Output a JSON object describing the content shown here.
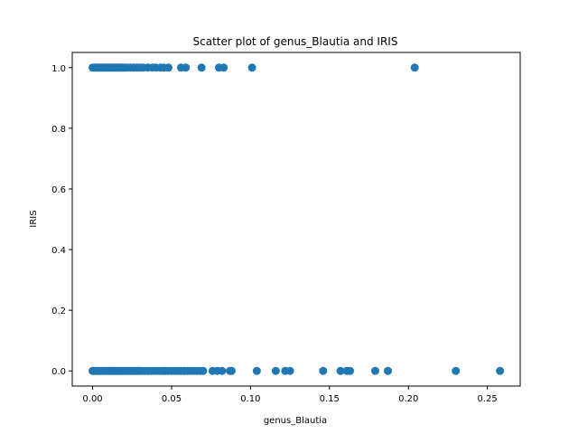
{
  "chart_data": {
    "type": "scatter",
    "title": "Scatter plot of genus_Blautia and IRIS",
    "xlabel": "genus_Blautia",
    "ylabel": "IRIS",
    "xlim": [
      -0.0129,
      0.2708
    ],
    "ylim": [
      -0.05,
      1.05
    ],
    "xticks": [
      0.0,
      0.05,
      0.1,
      0.15,
      0.2,
      0.25
    ],
    "xtick_labels": [
      "0.00",
      "0.05",
      "0.10",
      "0.15",
      "0.20",
      "0.25"
    ],
    "yticks": [
      0.0,
      0.2,
      0.4,
      0.6,
      0.8,
      1.0
    ],
    "ytick_labels": [
      "0.0",
      "0.2",
      "0.4",
      "0.6",
      "0.8",
      "1.0"
    ],
    "grid": false,
    "marker_color": "#1f77b4",
    "series": [
      {
        "name": "",
        "points": [
          {
            "x": 0.0,
            "y": 1
          },
          {
            "x": 0.001,
            "y": 1
          },
          {
            "x": 0.002,
            "y": 1
          },
          {
            "x": 0.003,
            "y": 1
          },
          {
            "x": 0.004,
            "y": 1
          },
          {
            "x": 0.005,
            "y": 1
          },
          {
            "x": 0.006,
            "y": 1
          },
          {
            "x": 0.007,
            "y": 1
          },
          {
            "x": 0.008,
            "y": 1
          },
          {
            "x": 0.009,
            "y": 1
          },
          {
            "x": 0.01,
            "y": 1
          },
          {
            "x": 0.011,
            "y": 1
          },
          {
            "x": 0.012,
            "y": 1
          },
          {
            "x": 0.013,
            "y": 1
          },
          {
            "x": 0.014,
            "y": 1
          },
          {
            "x": 0.015,
            "y": 1
          },
          {
            "x": 0.016,
            "y": 1
          },
          {
            "x": 0.017,
            "y": 1
          },
          {
            "x": 0.018,
            "y": 1
          },
          {
            "x": 0.019,
            "y": 1
          },
          {
            "x": 0.02,
            "y": 1
          },
          {
            "x": 0.022,
            "y": 1
          },
          {
            "x": 0.024,
            "y": 1
          },
          {
            "x": 0.026,
            "y": 1
          },
          {
            "x": 0.028,
            "y": 1
          },
          {
            "x": 0.03,
            "y": 1
          },
          {
            "x": 0.032,
            "y": 1
          },
          {
            "x": 0.035,
            "y": 1
          },
          {
            "x": 0.038,
            "y": 1
          },
          {
            "x": 0.04,
            "y": 1
          },
          {
            "x": 0.043,
            "y": 1
          },
          {
            "x": 0.045,
            "y": 1
          },
          {
            "x": 0.048,
            "y": 1
          },
          {
            "x": 0.056,
            "y": 1
          },
          {
            "x": 0.059,
            "y": 1
          },
          {
            "x": 0.069,
            "y": 1
          },
          {
            "x": 0.08,
            "y": 1
          },
          {
            "x": 0.083,
            "y": 1
          },
          {
            "x": 0.101,
            "y": 1
          },
          {
            "x": 0.204,
            "y": 1
          },
          {
            "x": 0.0,
            "y": 0
          },
          {
            "x": 0.001,
            "y": 0
          },
          {
            "x": 0.002,
            "y": 0
          },
          {
            "x": 0.003,
            "y": 0
          },
          {
            "x": 0.004,
            "y": 0
          },
          {
            "x": 0.005,
            "y": 0
          },
          {
            "x": 0.006,
            "y": 0
          },
          {
            "x": 0.007,
            "y": 0
          },
          {
            "x": 0.008,
            "y": 0
          },
          {
            "x": 0.009,
            "y": 0
          },
          {
            "x": 0.01,
            "y": 0
          },
          {
            "x": 0.011,
            "y": 0
          },
          {
            "x": 0.012,
            "y": 0
          },
          {
            "x": 0.013,
            "y": 0
          },
          {
            "x": 0.014,
            "y": 0
          },
          {
            "x": 0.015,
            "y": 0
          },
          {
            "x": 0.016,
            "y": 0
          },
          {
            "x": 0.017,
            "y": 0
          },
          {
            "x": 0.018,
            "y": 0
          },
          {
            "x": 0.019,
            "y": 0
          },
          {
            "x": 0.02,
            "y": 0
          },
          {
            "x": 0.021,
            "y": 0
          },
          {
            "x": 0.022,
            "y": 0
          },
          {
            "x": 0.023,
            "y": 0
          },
          {
            "x": 0.024,
            "y": 0
          },
          {
            "x": 0.025,
            "y": 0
          },
          {
            "x": 0.026,
            "y": 0
          },
          {
            "x": 0.027,
            "y": 0
          },
          {
            "x": 0.028,
            "y": 0
          },
          {
            "x": 0.029,
            "y": 0
          },
          {
            "x": 0.03,
            "y": 0
          },
          {
            "x": 0.031,
            "y": 0
          },
          {
            "x": 0.033,
            "y": 0
          },
          {
            "x": 0.035,
            "y": 0
          },
          {
            "x": 0.037,
            "y": 0
          },
          {
            "x": 0.039,
            "y": 0
          },
          {
            "x": 0.041,
            "y": 0
          },
          {
            "x": 0.043,
            "y": 0
          },
          {
            "x": 0.045,
            "y": 0
          },
          {
            "x": 0.046,
            "y": 0
          },
          {
            "x": 0.048,
            "y": 0
          },
          {
            "x": 0.05,
            "y": 0
          },
          {
            "x": 0.052,
            "y": 0
          },
          {
            "x": 0.054,
            "y": 0
          },
          {
            "x": 0.056,
            "y": 0
          },
          {
            "x": 0.058,
            "y": 0
          },
          {
            "x": 0.06,
            "y": 0
          },
          {
            "x": 0.062,
            "y": 0
          },
          {
            "x": 0.064,
            "y": 0
          },
          {
            "x": 0.066,
            "y": 0
          },
          {
            "x": 0.068,
            "y": 0
          },
          {
            "x": 0.07,
            "y": 0
          },
          {
            "x": 0.076,
            "y": 0
          },
          {
            "x": 0.079,
            "y": 0
          },
          {
            "x": 0.082,
            "y": 0
          },
          {
            "x": 0.087,
            "y": 0
          },
          {
            "x": 0.088,
            "y": 0
          },
          {
            "x": 0.104,
            "y": 0
          },
          {
            "x": 0.116,
            "y": 0
          },
          {
            "x": 0.122,
            "y": 0
          },
          {
            "x": 0.125,
            "y": 0
          },
          {
            "x": 0.146,
            "y": 0
          },
          {
            "x": 0.157,
            "y": 0
          },
          {
            "x": 0.161,
            "y": 0
          },
          {
            "x": 0.163,
            "y": 0
          },
          {
            "x": 0.179,
            "y": 0
          },
          {
            "x": 0.187,
            "y": 0
          },
          {
            "x": 0.23,
            "y": 0
          },
          {
            "x": 0.258,
            "y": 0
          }
        ]
      }
    ]
  }
}
